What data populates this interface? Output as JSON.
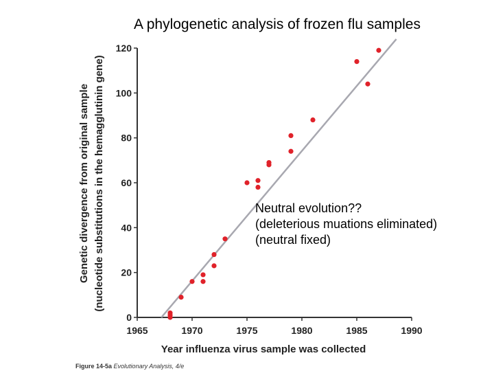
{
  "chart_data": {
    "type": "scatter",
    "title": "A phylogenetic analysis of frozen flu samples",
    "xlabel": "Year influenza virus sample was collected",
    "ylabel_line1": "Genetic divergence from original sample",
    "ylabel_line2": "(nucleotide substitutions in the hemagglutinin gene)",
    "xlim": [
      1965,
      1990
    ],
    "ylim": [
      0,
      120
    ],
    "x_ticks": [
      1965,
      1970,
      1975,
      1980,
      1985,
      1990
    ],
    "y_ticks": [
      0,
      20,
      40,
      60,
      80,
      100,
      120
    ],
    "points": [
      {
        "x": 1968,
        "y": 0
      },
      {
        "x": 1968,
        "y": 1
      },
      {
        "x": 1968,
        "y": 2
      },
      {
        "x": 1969,
        "y": 9
      },
      {
        "x": 1970,
        "y": 16
      },
      {
        "x": 1971,
        "y": 16
      },
      {
        "x": 1971,
        "y": 19
      },
      {
        "x": 1972,
        "y": 23
      },
      {
        "x": 1972,
        "y": 28
      },
      {
        "x": 1973,
        "y": 35
      },
      {
        "x": 1975,
        "y": 60
      },
      {
        "x": 1976,
        "y": 58
      },
      {
        "x": 1976,
        "y": 61
      },
      {
        "x": 1977,
        "y": 68
      },
      {
        "x": 1977,
        "y": 69
      },
      {
        "x": 1979,
        "y": 74
      },
      {
        "x": 1979,
        "y": 81
      },
      {
        "x": 1981,
        "y": 88
      },
      {
        "x": 1985,
        "y": 114
      },
      {
        "x": 1986,
        "y": 104
      },
      {
        "x": 1987,
        "y": 119
      }
    ],
    "trend_line": {
      "x": [
        1967.2,
        1988.6
      ],
      "y": [
        0,
        124
      ]
    },
    "colors": {
      "points": "#e0222a",
      "line": "#a8a8b0",
      "axes": "#333333"
    }
  },
  "annotation": {
    "line1": "Neutral evolution??",
    "line2": "(deleterious muations eliminated)",
    "line3": "(neutral fixed)"
  },
  "caption": {
    "figure": "Figure 14-5a",
    "book": "Evolutionary Analysis, 4/e"
  }
}
